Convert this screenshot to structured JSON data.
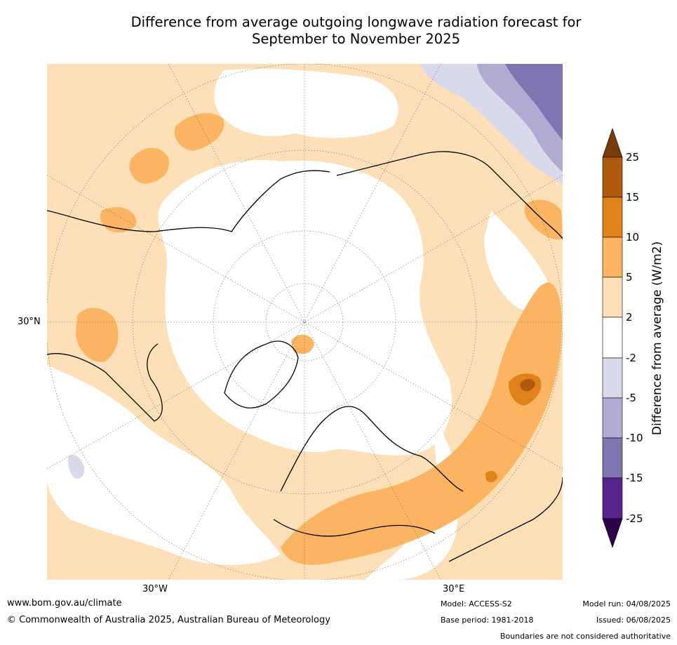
{
  "title": {
    "line1": "Difference from average outgoing longwave radiation forecast for",
    "line2": "September to November 2025"
  },
  "axes": {
    "lat_label": "30°N",
    "lon_west_label": "30°W",
    "lon_east_label": "30°E"
  },
  "colorbar": {
    "title": "Difference from average (W/m2)",
    "tick_labels": [
      "25",
      "15",
      "10",
      "5",
      "2",
      "-2",
      "-5",
      "-10",
      "-15",
      "-25"
    ],
    "colors": {
      "extend_high": "#7a3a0a",
      "c15_25": "#b05a10",
      "c10_15": "#e08217",
      "c5_10": "#fbb461",
      "c2_5": "#fde0b8",
      "cneg2_2": "#ffffff",
      "cneg5_neg2": "#d8d9ea",
      "cneg10_neg5": "#b1aad3",
      "cneg15_neg10": "#8074b1",
      "cneg25_neg15": "#55248f",
      "extend_low": "#2d0049"
    }
  },
  "footer": {
    "url": "www.bom.gov.au/climate",
    "copyright": "© Commonwealth of Australia 2025, Australian Bureau of Meteorology",
    "model": "Model: ACCESS-S2",
    "base_period": "Base period: 1981-2018",
    "model_run": "Model run: 04/08/2025",
    "issued": "Issued: 06/08/2025",
    "boundaries_note": "Boundaries are not considered authoritative"
  }
}
